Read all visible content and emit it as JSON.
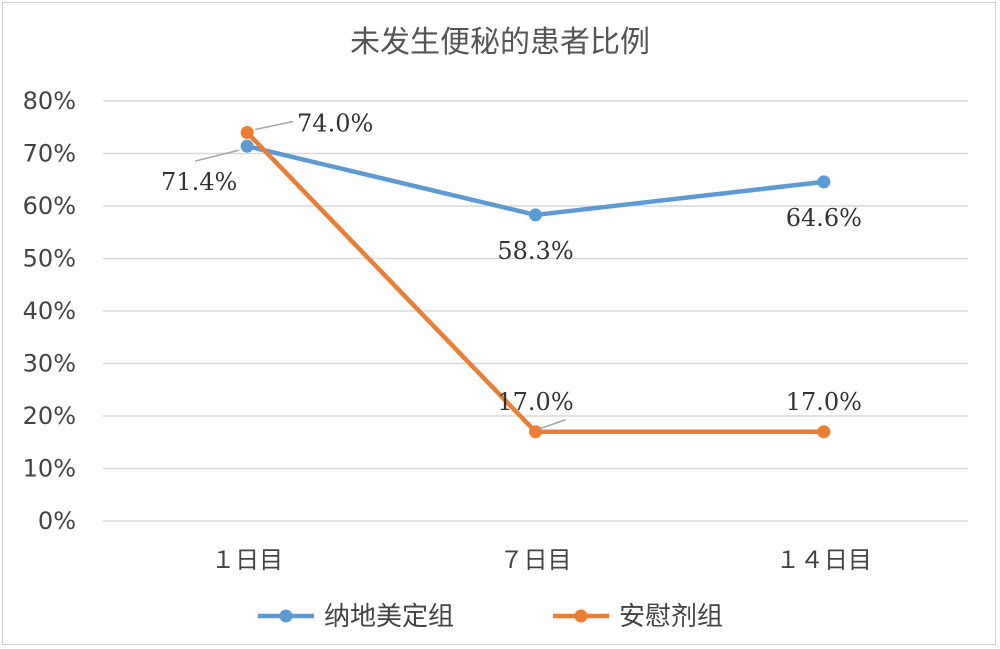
{
  "chart_data": {
    "type": "line",
    "title": "未发生便秘的患者比例",
    "categories": [
      "1日目",
      "7日目",
      "14日目"
    ],
    "category_labels": [
      "１日目",
      "７日目",
      "１４日目"
    ],
    "y_ticks": [
      "0%",
      "10%",
      "20%",
      "30%",
      "40%",
      "50%",
      "60%",
      "70%",
      "80%"
    ],
    "ylim": [
      0,
      80
    ],
    "grid": true,
    "legend_position": "bottom",
    "series": [
      {
        "name": "纳地美定组",
        "color": "#5b9bd5",
        "values": [
          71.4,
          58.3,
          64.6
        ],
        "labels": [
          "71.4%",
          "58.3%",
          "64.6%"
        ]
      },
      {
        "name": "安慰剂组",
        "color": "#ed7d31",
        "values": [
          74.0,
          17.0,
          17.0
        ],
        "labels": [
          "74.0%",
          "17.0%",
          "17.0%"
        ]
      }
    ]
  }
}
